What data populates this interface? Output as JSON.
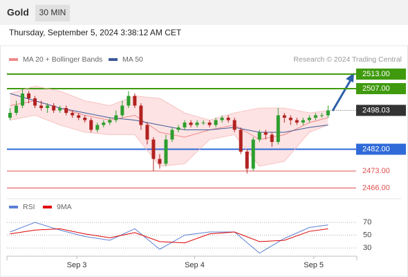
{
  "header": {
    "symbol": "Gold",
    "timeframe": "30 MIN",
    "timestamp": "Thursday, September 5, 2024 3:38:12 AM CET"
  },
  "chart_data": [
    {
      "type": "candlestick",
      "legend": [
        {
          "name": "MA 20 + Bollinger Bands",
          "color": "#f08a8a"
        },
        {
          "name": "MA 50",
          "color": "#3d5a99"
        }
      ],
      "source": "Research © 2024 Trading Central",
      "xlim": [
        -0.5,
        55.5
      ],
      "xticks": [
        {
          "value": 10.7,
          "label": "Sep 3"
        },
        {
          "value": 29.6,
          "label": "Sep 4"
        },
        {
          "value": 48.7,
          "label": "Sep 5"
        }
      ],
      "ylim": [
        2465,
        2515
      ],
      "up_color": "#2e9e2e",
      "down_color": "#b22222",
      "open": [
        2495,
        2497,
        2500,
        2505,
        2503,
        2500,
        2499,
        2500,
        2498,
        2499,
        2497,
        2496,
        2495,
        2494,
        2490,
        2492,
        2493,
        2494,
        2496,
        2500,
        2504,
        2500,
        2492,
        2486,
        2478,
        2476,
        2486,
        2490,
        2491,
        2493,
        2492,
        2493,
        2493,
        2492,
        2494,
        2495,
        2494,
        2490,
        2481,
        2474,
        2486,
        2489,
        2488,
        2485,
        2496,
        2495,
        2494,
        2493,
        2494,
        2495,
        2496,
        2496
      ],
      "high": [
        2499,
        2502,
        2507,
        2506,
        2504,
        2502,
        2501,
        2501,
        2500,
        2500,
        2498,
        2497,
        2496,
        2495,
        2493,
        2494,
        2495,
        2498,
        2502,
        2506,
        2505,
        2501,
        2493,
        2487,
        2480,
        2488,
        2491,
        2492,
        2494,
        2494,
        2494,
        2494,
        2494,
        2495,
        2496,
        2496,
        2495,
        2491,
        2482,
        2487,
        2490,
        2490,
        2489,
        2499,
        2497,
        2496,
        2495,
        2495,
        2496,
        2497,
        2497,
        2500
      ],
      "low": [
        2494,
        2496,
        2499,
        2501,
        2499,
        2498,
        2497,
        2497,
        2497,
        2496,
        2495,
        2494,
        2493,
        2489,
        2489,
        2491,
        2492,
        2493,
        2495,
        2499,
        2499,
        2490,
        2484,
        2473,
        2474,
        2475,
        2485,
        2489,
        2490,
        2491,
        2491,
        2492,
        2491,
        2491,
        2493,
        2493,
        2489,
        2480,
        2472,
        2473,
        2485,
        2486,
        2483,
        2484,
        2493,
        2492,
        2492,
        2492,
        2493,
        2494,
        2495,
        2495
      ],
      "close": [
        2497,
        2500,
        2505,
        2503,
        2500,
        2499,
        2500,
        2498,
        2499,
        2497,
        2496,
        2495,
        2494,
        2490,
        2492,
        2493,
        2494,
        2496,
        2500,
        2504,
        2500,
        2492,
        2486,
        2478,
        2476,
        2486,
        2490,
        2491,
        2493,
        2492,
        2493,
        2493,
        2492,
        2494,
        2495,
        2494,
        2490,
        2481,
        2474,
        2486,
        2489,
        2488,
        2485,
        2496,
        2495,
        2494,
        2493,
        2494,
        2495,
        2496,
        2496,
        2498
      ],
      "indicator_x": [
        0,
        4,
        8,
        12,
        16,
        20,
        24,
        28,
        32,
        36,
        40,
        44,
        48,
        51
      ],
      "band_color": "#fde3e3",
      "lines": [
        {
          "name": "Bollinger upper",
          "color": "#f6b8b8",
          "values": [
            2505,
            2508,
            2506,
            2502,
            2500,
            2504,
            2503,
            2497,
            2494,
            2497,
            2499,
            2499,
            2497,
            2498
          ]
        },
        {
          "name": "Bollinger lower",
          "color": "#f6b8b8",
          "values": [
            2494,
            2496,
            2492,
            2489,
            2488,
            2488,
            2475,
            2476,
            2486,
            2488,
            2475,
            2477,
            2489,
            2492
          ]
        },
        {
          "name": "MA 20",
          "color": "#f08a8a",
          "values": [
            2500,
            2502,
            2499,
            2496,
            2494,
            2496,
            2489,
            2487,
            2490,
            2492,
            2486,
            2488,
            2493,
            2495
          ]
        },
        {
          "name": "MA 50",
          "color": "#3d5a99",
          "values": [
            2505,
            2502,
            2499,
            2497,
            2495,
            2494,
            2492,
            2490,
            2490,
            2491,
            2489,
            2489,
            2491,
            2492
          ]
        }
      ],
      "levels": [
        {
          "value": 2513.0,
          "label": "2513.00",
          "color": "#3f9a0e",
          "boxed": true
        },
        {
          "value": 2507.0,
          "label": "2507.00",
          "color": "#3f9a0e",
          "boxed": true
        },
        {
          "value": 2498.03,
          "label": "2498.03",
          "color": "#333333",
          "boxed": true
        },
        {
          "value": 2482.0,
          "label": "2482.00",
          "color": "#2f6ad9",
          "boxed": true
        },
        {
          "value": 2473.0,
          "label": "2473.00",
          "color": "#e05050",
          "boxed": false
        },
        {
          "value": 2466.0,
          "label": "2466.00",
          "color": "#e05050",
          "boxed": false
        }
      ]
    },
    {
      "type": "line",
      "ylim": [
        15,
        82
      ],
      "yticks": [
        70,
        50,
        30
      ],
      "x": [
        0,
        4,
        8,
        12,
        16,
        20,
        24,
        28,
        32,
        36,
        40,
        44,
        48,
        51
      ],
      "series": [
        {
          "name": "RSI",
          "color": "#5b7fd6",
          "values": [
            55,
            70,
            58,
            48,
            42,
            60,
            28,
            50,
            55,
            55,
            22,
            45,
            62,
            66
          ]
        },
        {
          "name": "9MA",
          "color": "#e00000",
          "values": [
            52,
            58,
            60,
            52,
            46,
            54,
            40,
            38,
            52,
            55,
            40,
            42,
            56,
            60
          ]
        }
      ]
    }
  ]
}
